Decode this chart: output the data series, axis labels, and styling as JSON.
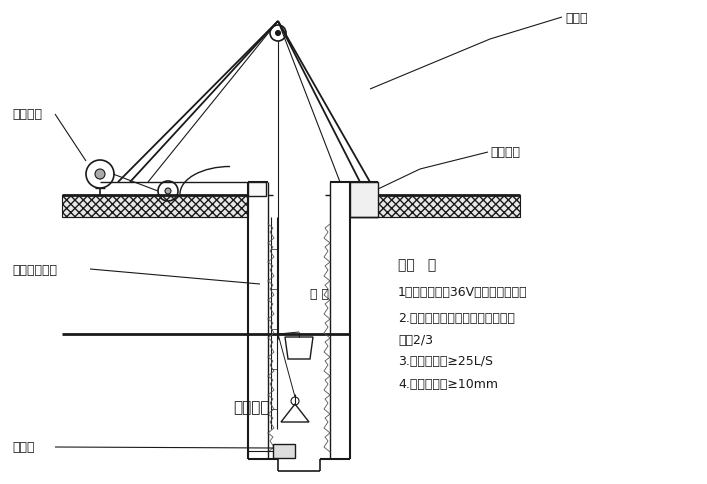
{
  "bg_color": "#ffffff",
  "line_color": "#1a1a1a",
  "labels": {
    "gang_jia_guan": "钢架管",
    "zhuan_jing_quan": "砖砌井圈",
    "dian_dong_hu_lu": "电动葫芦",
    "feng_ji_song_feng_guan": "风机及送风管",
    "diao_tong": "吊 桶",
    "zhao_ming_deng_ju": "照明灯具",
    "qian_shui_beng": "潜水泵",
    "shuo_ming": "说明   ：",
    "note1": "1：孔内照明为36V低电压电灯灯泡",
    "note2": "2.吊桶为皮桶，一次装土量不超过",
    "note3": "容量2/3",
    "note4": "3.孔内送风量≥25L/S",
    "note5": "4.钢丝绳直径≥10mm"
  },
  "fig_width": 7.07,
  "fig_height": 4.85,
  "dpi": 100
}
